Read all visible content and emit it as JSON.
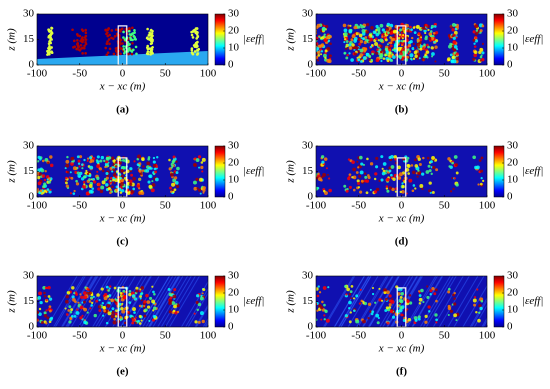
{
  "chart_data": [
    {
      "type": "heatmap",
      "caption": "(a)",
      "xlabel": "x − xc (m)",
      "ylabel": "z (m)",
      "xlim": [
        -100,
        100
      ],
      "xticks": [
        -100,
        -50,
        0,
        50,
        100
      ],
      "ylim": [
        0,
        30
      ],
      "yticks": [
        0,
        15,
        30
      ],
      "colorbar": {
        "label": "|εeff|",
        "lim": [
          0,
          30
        ],
        "ticks": [
          0,
          10,
          20,
          30
        ]
      },
      "highlight": {
        "xlim": [
          -5,
          5
        ],
        "ylim": [
          0,
          23
        ]
      }
    },
    {
      "type": "heatmap",
      "caption": "(b)",
      "xlabel": "x − xc (m)",
      "ylabel": "z (m)",
      "xlim": [
        -100,
        100
      ],
      "xticks": [
        -100,
        -50,
        0,
        50,
        100
      ],
      "ylim": [
        0,
        30
      ],
      "yticks": [
        0,
        15,
        30
      ],
      "colorbar": {
        "label": "|εeff|",
        "lim": [
          0,
          30
        ],
        "ticks": [
          0,
          10,
          20,
          30
        ]
      },
      "highlight": {
        "xlim": [
          -5,
          5
        ],
        "ylim": [
          0,
          23
        ]
      }
    },
    {
      "type": "heatmap",
      "caption": "(c)",
      "xlabel": "x − xc (m)",
      "ylabel": "z (m)",
      "xlim": [
        -100,
        100
      ],
      "xticks": [
        -100,
        -50,
        0,
        50,
        100
      ],
      "ylim": [
        0,
        30
      ],
      "yticks": [
        0,
        15,
        30
      ],
      "colorbar": {
        "label": "|εeff|",
        "lim": [
          0,
          30
        ],
        "ticks": [
          0,
          10,
          20,
          30
        ]
      },
      "highlight": {
        "xlim": [
          -5,
          5
        ],
        "ylim": [
          0,
          23
        ]
      }
    },
    {
      "type": "heatmap",
      "caption": "(d)",
      "xlabel": "x − xc (m)",
      "ylabel": "z (m)",
      "xlim": [
        -100,
        100
      ],
      "xticks": [
        -100,
        -50,
        0,
        50,
        100
      ],
      "ylim": [
        0,
        30
      ],
      "yticks": [
        0,
        15,
        30
      ],
      "colorbar": {
        "label": "|εeff|",
        "lim": [
          0,
          30
        ],
        "ticks": [
          0,
          10,
          20,
          30
        ]
      },
      "highlight": {
        "xlim": [
          -5,
          5
        ],
        "ylim": [
          0,
          23
        ]
      }
    },
    {
      "type": "heatmap",
      "caption": "(e)",
      "xlabel": "x − xc (m)",
      "ylabel": "z (m)",
      "xlim": [
        -100,
        100
      ],
      "xticks": [
        -100,
        -50,
        0,
        50,
        100
      ],
      "ylim": [
        0,
        30
      ],
      "yticks": [
        0,
        15,
        30
      ],
      "colorbar": {
        "label": "|εeff|",
        "lim": [
          0,
          30
        ],
        "ticks": [
          0,
          10,
          20,
          30
        ]
      },
      "highlight": {
        "xlim": [
          -5,
          5
        ],
        "ylim": [
          0,
          23
        ]
      }
    },
    {
      "type": "heatmap",
      "caption": "(f)",
      "xlabel": "x − xc (m)",
      "ylabel": "z (m)",
      "xlim": [
        -100,
        100
      ],
      "xticks": [
        -100,
        -50,
        0,
        50,
        100
      ],
      "ylim": [
        0,
        30
      ],
      "yticks": [
        0,
        15,
        30
      ],
      "colorbar": {
        "label": "|εeff|",
        "lim": [
          0,
          30
        ],
        "ticks": [
          0,
          10,
          20,
          30
        ]
      },
      "highlight": {
        "xlim": [
          -5,
          5
        ],
        "ylim": [
          0,
          23
        ]
      }
    }
  ]
}
